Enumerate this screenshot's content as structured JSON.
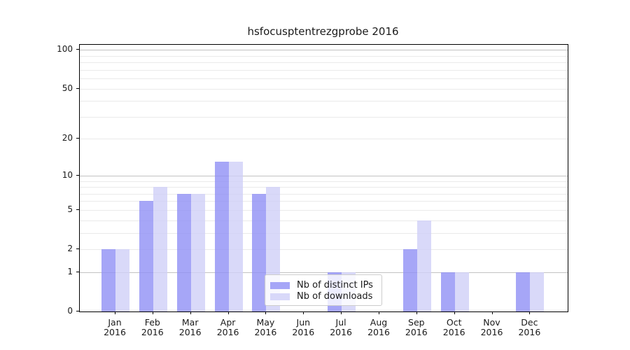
{
  "figure": {
    "title": "hsfocusptentrezgprobe 2016"
  },
  "chart_data": {
    "type": "bar",
    "title": "hsfocusptentrezgprobe 2016",
    "categories": [
      "Jan",
      "Feb",
      "Mar",
      "Apr",
      "May",
      "Jun",
      "Jul",
      "Aug",
      "Sep",
      "Oct",
      "Nov",
      "Dec"
    ],
    "x_year_label": "2016",
    "series": [
      {
        "name": "Nb of distinct IPs",
        "color": "#9090f5",
        "values": [
          2,
          6,
          7,
          13,
          7,
          0,
          1,
          0,
          2,
          1,
          0,
          1
        ]
      },
      {
        "name": "Nb of downloads",
        "color": "#cfcff7",
        "values": [
          2,
          8,
          7,
          13,
          8,
          0,
          1,
          0,
          4,
          1,
          0,
          1
        ]
      }
    ],
    "y_scale": "log1p",
    "ylim": [
      0,
      110
    ],
    "y_ticks": [
      0,
      1,
      2,
      5,
      10,
      20,
      50,
      100
    ],
    "y_major_gridlines": [
      1,
      10,
      100
    ],
    "y_minor_gridlines": [
      2,
      3,
      4,
      5,
      6,
      7,
      8,
      9,
      20,
      30,
      40,
      50,
      60,
      70,
      80,
      90
    ],
    "grid": true,
    "legend_position": "lower center (inside plot)"
  },
  "colors": {
    "major_grid": "#c2c2c2",
    "minor_grid": "#eaeaea",
    "spine": "#000000",
    "text": "#1a1a1a",
    "legend_border": "#cccccc"
  }
}
